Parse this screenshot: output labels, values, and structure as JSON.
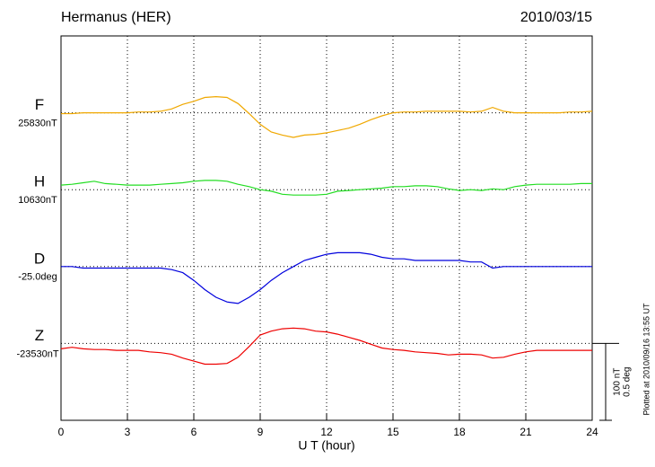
{
  "chart_data": {
    "type": "line",
    "title": "Hermanus (HER)",
    "date": "2010/03/15",
    "xlabel": "U T (hour)",
    "footnote": "Plotted at 2010/09/16 13:55 UT",
    "xlim": [
      0,
      24
    ],
    "xticks": [
      0,
      3,
      6,
      9,
      12,
      15,
      18,
      21,
      24
    ],
    "ylim": [
      -400,
      100
    ],
    "yticks": [
      {
        "value": 0,
        "label": "25830nT"
      },
      {
        "value": -100,
        "label": "10630nT"
      },
      {
        "value": -200,
        "label": "-25.0deg"
      },
      {
        "value": -300,
        "label": "-23530nT"
      }
    ],
    "grid": true,
    "scale_bar": {
      "values": [
        100,
        0.5
      ],
      "labels": [
        "100 nT",
        "0.5 deg"
      ]
    },
    "x": [
      0,
      0.5,
      1,
      1.5,
      2,
      2.5,
      3,
      3.5,
      4,
      4.5,
      5,
      5.5,
      6,
      6.5,
      7,
      7.5,
      8,
      8.5,
      9,
      9.5,
      10,
      10.5,
      11,
      11.5,
      12,
      12.5,
      13,
      13.5,
      14,
      14.5,
      15,
      15.5,
      16,
      16.5,
      17,
      17.5,
      18,
      18.5,
      19,
      19.5,
      20,
      20.5,
      21,
      21.5,
      22,
      22.5,
      23,
      23.5,
      24
    ],
    "series": [
      {
        "name": "F",
        "color": "#f0a800",
        "values": [
          -1,
          -1,
          0,
          0,
          0,
          0,
          0,
          1,
          1,
          2,
          5,
          11,
          15,
          20,
          21,
          20,
          12,
          -1,
          -15,
          -25,
          -29,
          -32,
          -29,
          -28,
          -26,
          -23,
          -20,
          -15,
          -9,
          -4,
          0,
          1,
          1,
          2,
          2,
          2,
          2,
          1,
          2,
          7,
          2,
          0,
          0,
          0,
          0,
          0,
          1,
          1,
          2
        ]
      },
      {
        "name": "H",
        "color": "#22dd22",
        "values": [
          6,
          7,
          9,
          11,
          8,
          7,
          6,
          6,
          6,
          7,
          8,
          9,
          11,
          12,
          12,
          11,
          7,
          4,
          0,
          -2,
          -6,
          -7,
          -7,
          -7,
          -6,
          -2,
          -1,
          0,
          1,
          2,
          4,
          4,
          5,
          5,
          4,
          1,
          -1,
          0,
          -1,
          1,
          0,
          4,
          6,
          7,
          7,
          7,
          7,
          8,
          8
        ]
      },
      {
        "name": "D",
        "color": "#0000dd",
        "values": [
          0,
          0,
          -0.01,
          -0.01,
          -0.01,
          -0.01,
          -0.01,
          -0.01,
          -0.01,
          -0.01,
          -0.02,
          -0.04,
          -0.09,
          -0.15,
          -0.2,
          -0.23,
          -0.24,
          -0.2,
          -0.15,
          -0.09,
          -0.04,
          0,
          0.04,
          0.06,
          0.08,
          0.09,
          0.09,
          0.09,
          0.08,
          0.06,
          0.05,
          0.05,
          0.04,
          0.04,
          0.04,
          0.04,
          0.04,
          0.03,
          0.03,
          -0.01,
          0,
          0,
          0,
          0,
          0,
          0,
          0,
          0,
          0
        ]
      },
      {
        "name": "Z",
        "color": "#ee0000",
        "values": [
          -7,
          -5,
          -7,
          -8,
          -8,
          -9,
          -9,
          -9,
          -11,
          -12,
          -14,
          -19,
          -23,
          -27,
          -27,
          -26,
          -18,
          -4,
          11,
          16,
          19,
          20,
          19,
          16,
          15,
          12,
          8,
          4,
          -1,
          -6,
          -8,
          -9,
          -11,
          -12,
          -13,
          -15,
          -14,
          -14,
          -15,
          -19,
          -18,
          -14,
          -11,
          -9,
          -9,
          -9,
          -9,
          -9,
          -9
        ]
      }
    ]
  }
}
